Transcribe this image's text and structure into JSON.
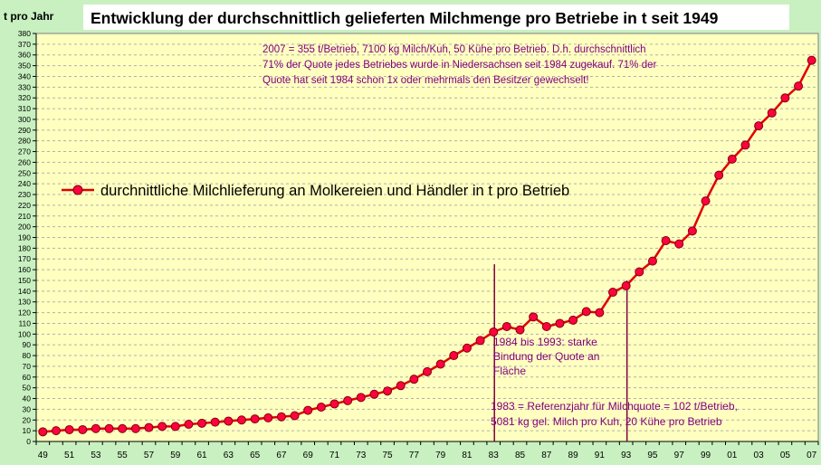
{
  "chart_data": {
    "type": "line",
    "title": "Entwicklung der durchschnittlich gelieferten Milchmenge pro Betriebe in t seit 1949",
    "ylabel": "t pro Jahr",
    "xlabel": "",
    "ylim": [
      0,
      380
    ],
    "y_step": 10,
    "grid": true,
    "legend_placement": "left",
    "x_tick_labels": [
      "49",
      "51",
      "53",
      "55",
      "57",
      "59",
      "61",
      "63",
      "65",
      "67",
      "69",
      "71",
      "73",
      "75",
      "77",
      "79",
      "81",
      "83",
      "85",
      "87",
      "89",
      "91",
      "93",
      "95",
      "97",
      "99",
      "01",
      "03",
      "05",
      "07"
    ],
    "x": [
      1949,
      1950,
      1951,
      1952,
      1953,
      1954,
      1955,
      1956,
      1957,
      1958,
      1959,
      1960,
      1961,
      1962,
      1963,
      1964,
      1965,
      1966,
      1967,
      1968,
      1969,
      1970,
      1971,
      1972,
      1973,
      1974,
      1975,
      1976,
      1977,
      1978,
      1979,
      1980,
      1981,
      1982,
      1983,
      1984,
      1985,
      1986,
      1987,
      1988,
      1989,
      1990,
      1991,
      1992,
      1993,
      1994,
      1995,
      1996,
      1997,
      1998,
      1999,
      2000,
      2001,
      2002,
      2003,
      2004,
      2005,
      2006,
      2007
    ],
    "series": [
      {
        "name": "durchnittliche Milchlieferung an Molkereien und Händler in t pro Betrieb",
        "color": "#e00000",
        "values": [
          9,
          10,
          11,
          11,
          12,
          12,
          12,
          12,
          13,
          14,
          14,
          16,
          17,
          18,
          19,
          20,
          21,
          22,
          23,
          24,
          29,
          32,
          35,
          38,
          41,
          44,
          47,
          52,
          58,
          65,
          72,
          80,
          87,
          94,
          102,
          107,
          104,
          116,
          107,
          110,
          113,
          121,
          120,
          139,
          145,
          158,
          168,
          187,
          184,
          196,
          224,
          248,
          263,
          276,
          294,
          306,
          320,
          331,
          355
        ]
      }
    ],
    "annotations": {
      "top_note": [
        "2007 = 355 t/Betrieb, 7100 kg Milch/Kuh, 50 Kühe pro Betrieb. D.h. durchschnittlich",
        "71% der Quote jedes Betriebes wurde in Niedersachsen seit 1984 zugekauf. 71% der",
        "Quote hat seit 1984 schon 1x oder mehrmals den Besitzer gewechselt!"
      ],
      "mid_note": [
        "1984 bis 1993: starke",
        "Bindung der Quote an",
        "Fläche"
      ],
      "bottom_note": [
        "1983 = Referenzjahr für Milchquote = 102 t/Betrieb,",
        "5081 kg gel. Milch pro Kuh, 20 Kühe pro Betrieb"
      ]
    },
    "colors": {
      "plot_background": "#ffffc0",
      "page_background": "#c8f0c0",
      "grid": "#b0b0b0",
      "note_text": "#800080",
      "marker_line": "#800040",
      "marker_fill": "#ff0040",
      "marker_stroke": "#800000"
    }
  }
}
